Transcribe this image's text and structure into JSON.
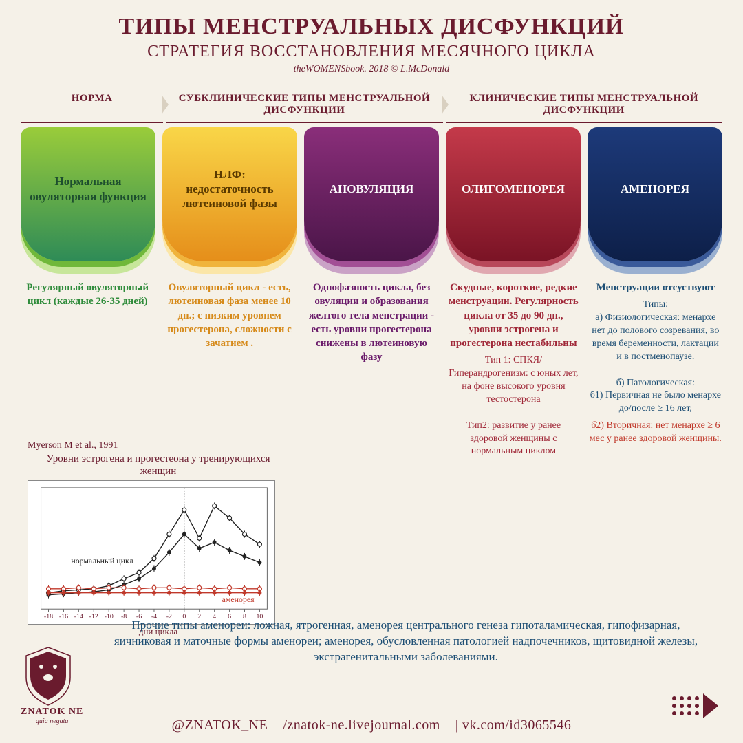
{
  "header": {
    "title": "ТИПЫ МЕНСТРУАЛЬНЫХ ДИСФУНКЦИЙ",
    "subtitle": "СТРАТЕГИЯ ВОССТАНОВЛЕНИЯ МЕСЯЧНОГО ЦИКЛА",
    "credit": "theWOMENSbook. 2018 © L.McDonald"
  },
  "tabs": [
    {
      "label": "НОРМА",
      "span": 1
    },
    {
      "label": "СУБКЛИНИЧЕСКИЕ ТИПЫ МЕНСТРУАЛЬНОЙ ДИСФУНКЦИИ",
      "span": 2
    },
    {
      "label": "КЛИНИЧЕСКИЕ ТИПЫ МЕНСТРУАЛЬНОЙ ДИСФУНКЦИИ",
      "span": 2
    }
  ],
  "pills": [
    {
      "label": "Нормальная овуляторная функция",
      "color_top": "#9acc3a",
      "color_bottom": "#2e8b57",
      "text_color": "#1d4e2e",
      "shadow1": "#70b83a",
      "shadow2": "#c7e69a"
    },
    {
      "label": "НЛФ:\nнедостаточность лютеиновой фазы",
      "color_top": "#f9d648",
      "color_bottom": "#e58e1a",
      "text_color": "#5a3a00",
      "shadow1": "#f0b43c",
      "shadow2": "#fbe6a8"
    },
    {
      "label": "АНОВУЛЯЦИЯ",
      "color_top": "#8a2e7a",
      "color_bottom": "#4a1548",
      "text_color": "#ffffff",
      "shadow1": "#a24f95",
      "shadow2": "#caa2c6"
    },
    {
      "label": "ОЛИГОМЕНОРЕЯ",
      "color_top": "#c43a4a",
      "color_bottom": "#7a1325",
      "text_color": "#ffffff",
      "shadow1": "#b8485a",
      "shadow2": "#e0a8b0"
    },
    {
      "label": "АМЕНОРЕЯ",
      "color_top": "#1d3a7a",
      "color_bottom": "#0d1f48",
      "text_color": "#ffffff",
      "shadow1": "#3a5a9a",
      "shadow2": "#9ab0d0"
    }
  ],
  "descs": [
    {
      "color": "#2e8b3a",
      "heading": "Регулярный овуляторный цикл (каждые 26-35 дней)",
      "body": ""
    },
    {
      "color": "#d68a1a",
      "heading": "Овуляторный цикл - есть, лютеиновая фаза менее 10 дн.; с низким уровнем прогестерона, сложности с зачатием .",
      "body": ""
    },
    {
      "color": "#6a1b6a",
      "heading": "Однофазность цикла, без овуляции и образования желтого тела менстрации - есть уровни прогестерона снижены в лютеиновую фазу",
      "body": ""
    },
    {
      "color": "#a02838",
      "heading": "Скудные, короткие, редкие менструации. Регулярность цикла от 35 до 90 дн., уровни эстрогена и прогестерона нестабильны",
      "body": "Тип 1: СПКЯ/ Гиперандрогенизм: с юных лет, на фоне высокого уровня тестостерона\n\nТип2: развитие у ранее здоровой женщины с нормальным циклом"
    },
    {
      "color": "#1d4e74",
      "heading": "Менструации отсуствуют",
      "body": "Типы:\nа) Физиологическая: менархе нет до полового созревания, во время беременности, лактации и в постменопаузе.\n\nб) Патологическая:\nб1) Первичная не было менархе до/после ≥ 16 лет,",
      "red": "б2) Вторичная: нет менархе ≥ 6 мес у ранее здоровой женщины."
    }
  ],
  "chart": {
    "caption": "Myerson M et al., 1991",
    "title": "Уровни эстрогена и прогестеона у тренирующихся женщин",
    "label_normal": "нормальный цикл",
    "label_amen": "аменорея",
    "xaxis": "дни цикла",
    "x_ticks": [
      -18,
      -16,
      -14,
      -12,
      -10,
      -8,
      -6,
      -4,
      -2,
      0,
      2,
      4,
      6,
      8,
      10
    ],
    "xlim": [
      -19,
      11
    ],
    "ylim": [
      0,
      12
    ],
    "bg": "#ffffff",
    "grid_color": "#666666",
    "series": {
      "normal_open": {
        "color": "#222222",
        "marker": "open",
        "points": [
          [
            -18,
            1.6
          ],
          [
            -16,
            1.8
          ],
          [
            -14,
            1.9
          ],
          [
            -12,
            2.0
          ],
          [
            -10,
            2.3
          ],
          [
            -8,
            3.0
          ],
          [
            -6,
            3.6
          ],
          [
            -4,
            5.0
          ],
          [
            -2,
            7.4
          ],
          [
            0,
            9.8
          ],
          [
            2,
            7.0
          ],
          [
            4,
            10.2
          ],
          [
            6,
            9.0
          ],
          [
            8,
            7.4
          ],
          [
            10,
            6.4
          ]
        ]
      },
      "normal_filled": {
        "color": "#222222",
        "marker": "filled",
        "points": [
          [
            -18,
            1.4
          ],
          [
            -16,
            1.5
          ],
          [
            -14,
            1.6
          ],
          [
            -12,
            1.7
          ],
          [
            -10,
            1.9
          ],
          [
            -8,
            2.4
          ],
          [
            -6,
            3.0
          ],
          [
            -4,
            4.0
          ],
          [
            -2,
            5.6
          ],
          [
            0,
            7.4
          ],
          [
            2,
            6.0
          ],
          [
            4,
            6.6
          ],
          [
            6,
            5.8
          ],
          [
            8,
            5.2
          ],
          [
            10,
            4.6
          ]
        ]
      },
      "amen_open": {
        "color": "#c0392b",
        "marker": "open",
        "points": [
          [
            -18,
            2.0
          ],
          [
            -16,
            2.0
          ],
          [
            -14,
            2.1
          ],
          [
            -12,
            2.0
          ],
          [
            -10,
            2.1
          ],
          [
            -8,
            2.1
          ],
          [
            -6,
            2.0
          ],
          [
            -4,
            2.1
          ],
          [
            -2,
            2.1
          ],
          [
            0,
            2.0
          ],
          [
            2,
            2.1
          ],
          [
            4,
            2.0
          ],
          [
            6,
            2.1
          ],
          [
            8,
            2.0
          ],
          [
            10,
            2.0
          ]
        ]
      },
      "amen_filled": {
        "color": "#c0392b",
        "marker": "filled",
        "points": [
          [
            -18,
            1.6
          ],
          [
            -16,
            1.6
          ],
          [
            -14,
            1.6
          ],
          [
            -12,
            1.6
          ],
          [
            -10,
            1.6
          ],
          [
            -8,
            1.6
          ],
          [
            -6,
            1.6
          ],
          [
            -4,
            1.6
          ],
          [
            -2,
            1.6
          ],
          [
            0,
            1.6
          ],
          [
            2,
            1.6
          ],
          [
            4,
            1.6
          ],
          [
            6,
            1.6
          ],
          [
            8,
            1.6
          ],
          [
            10,
            1.6
          ]
        ]
      }
    }
  },
  "bottom_note": "Прочие типы аменореи: ложная, ятрогенная, аменорея центрального генеза гипоталамическая, гипофизарная, яичниковая и маточные формы аменореи; аменорея, обусловленная патологией надпочечников, щитовидной железы, экстрагенитальными заболеваниями.",
  "footer": {
    "handle": "@ZNATOK_NE",
    "url1": "/znatok-ne.livejournal.com",
    "url2": "| vk.com/id3065546"
  },
  "logo": {
    "name": "ZNATOK NE",
    "motto": "quia negata"
  }
}
